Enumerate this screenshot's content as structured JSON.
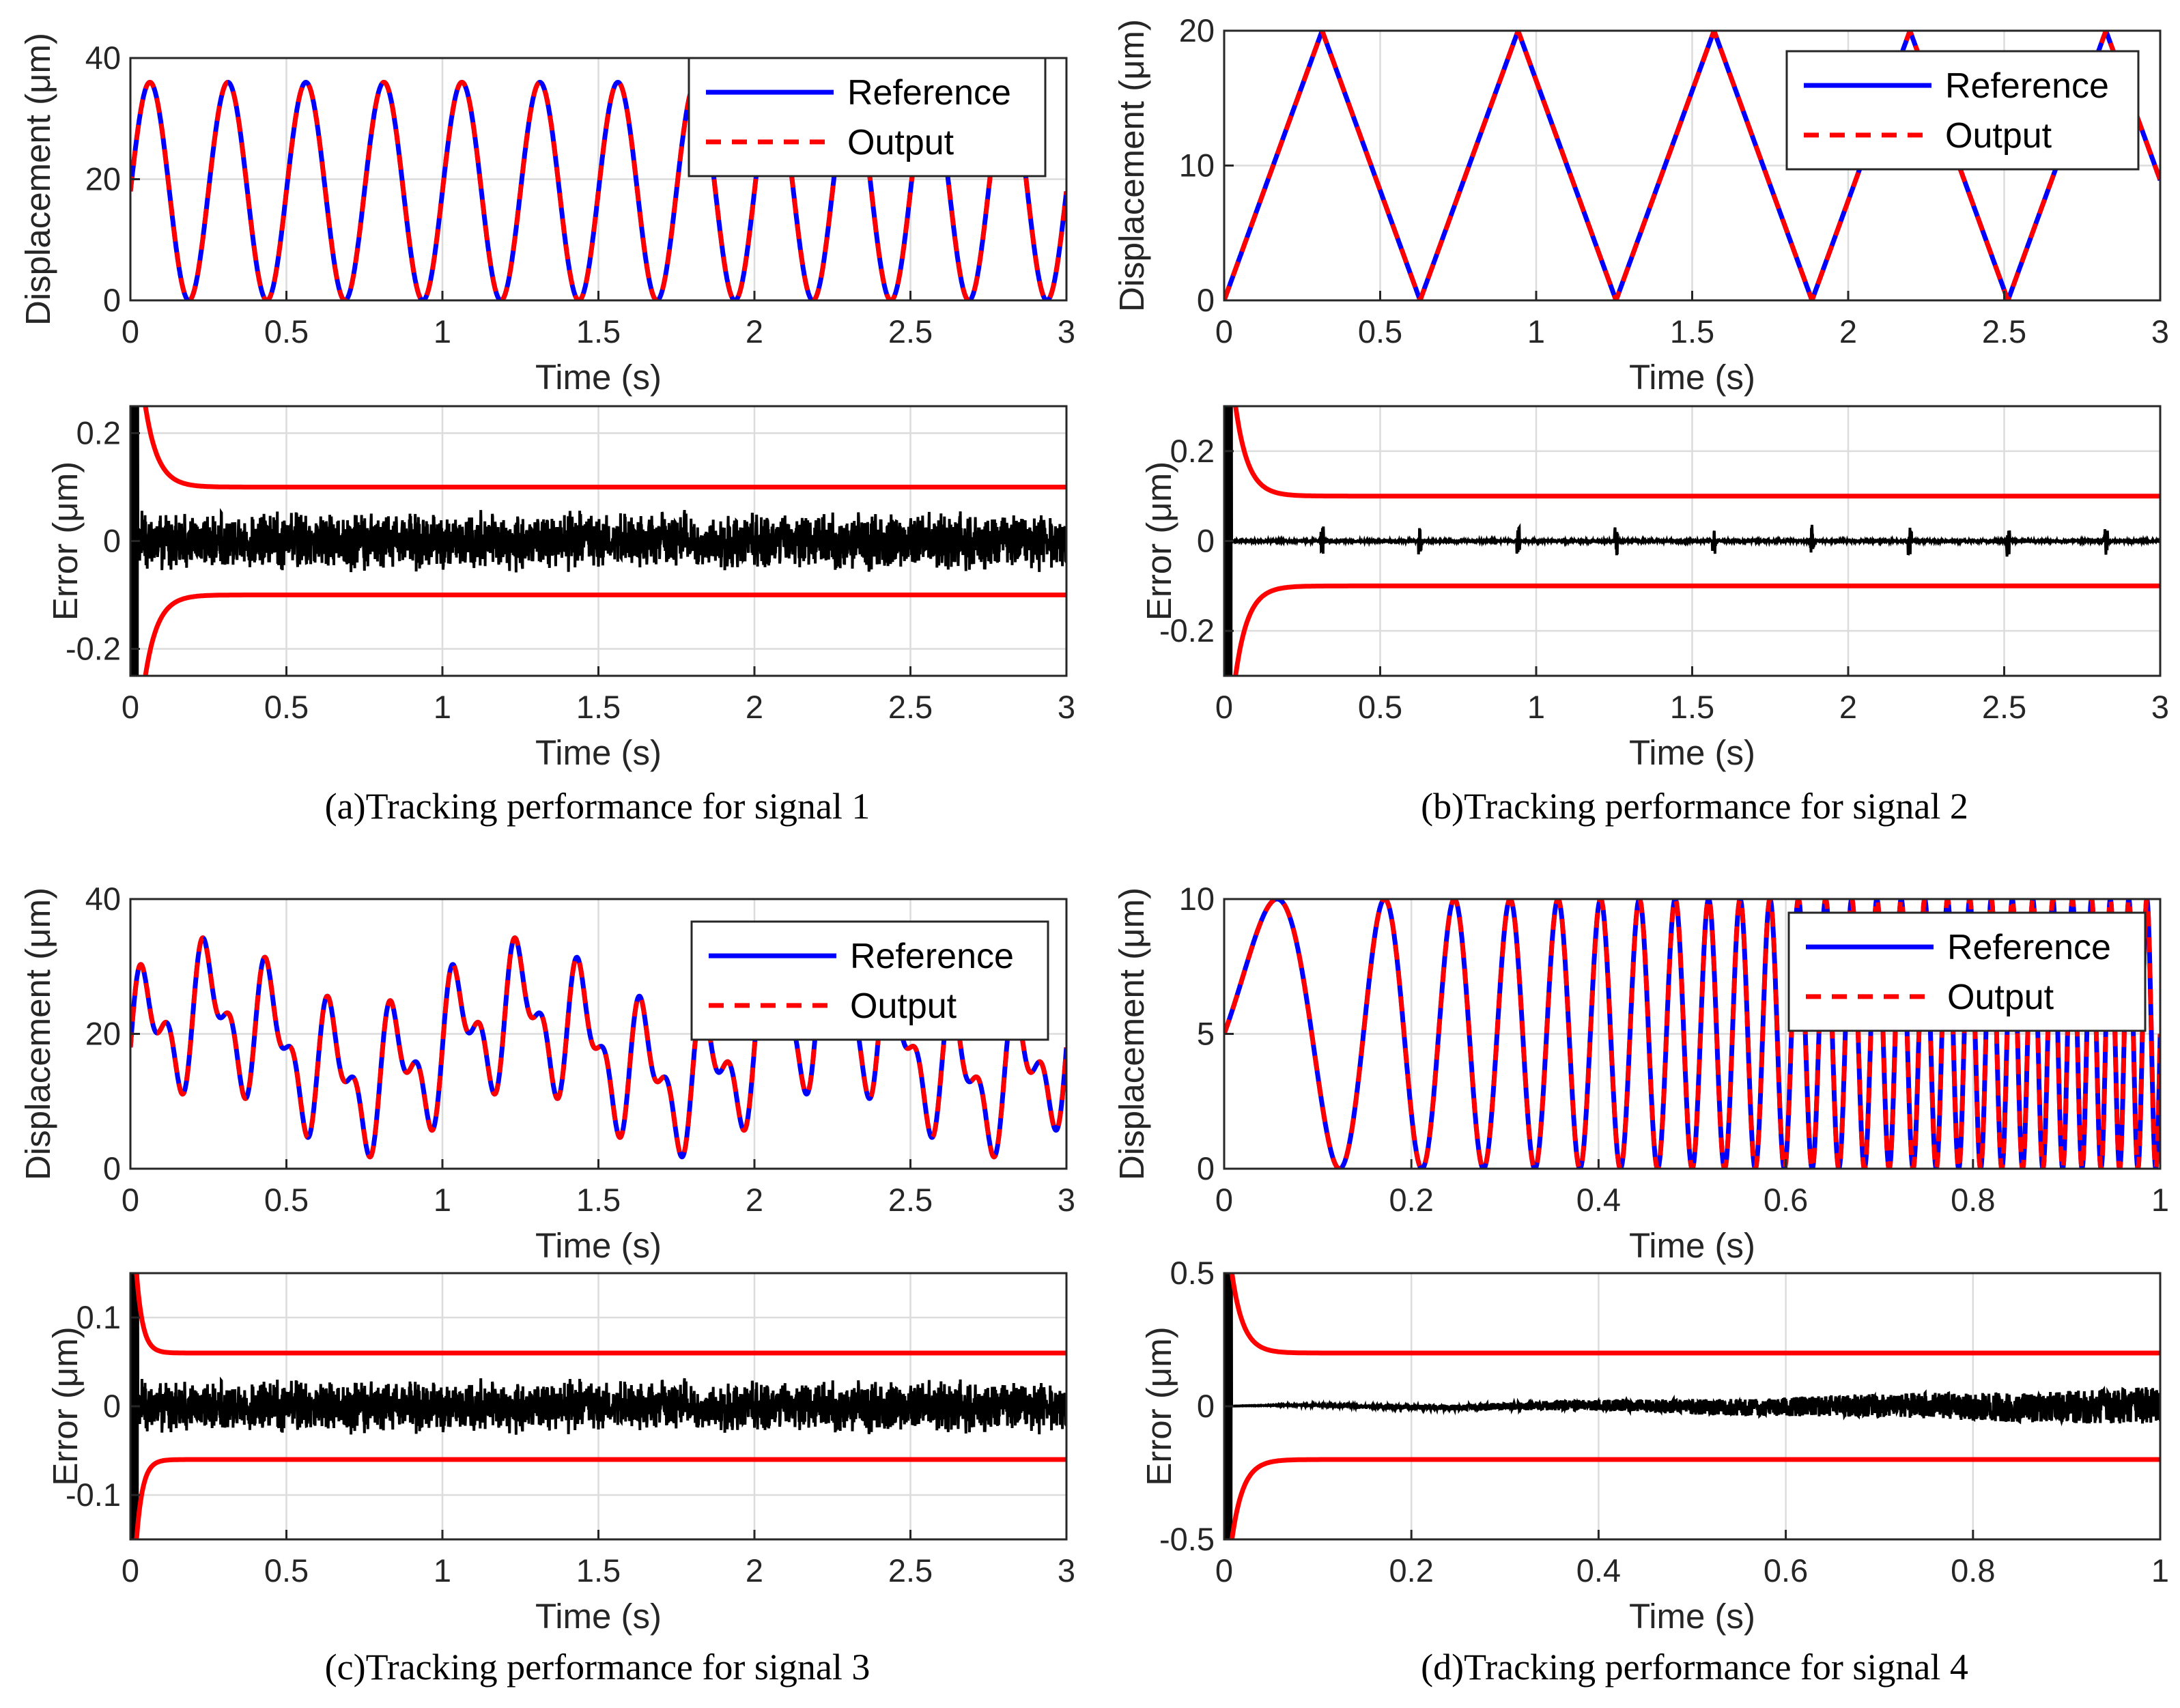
{
  "figure": {
    "captions": [
      "(a)Tracking performance for signal 1",
      "(b)Tracking performance for signal 2",
      "(c)Tracking performance for signal 3",
      "(d)Tracking performance for signal 4"
    ]
  },
  "colors": {
    "reference": "#0000ff",
    "output": "#ff0000",
    "error": "#000000",
    "bound": "#ff0000",
    "grid": "#dcdcdc"
  },
  "chart_data": [
    {
      "id": "a-top",
      "type": "line",
      "title": "",
      "xlabel": "Time (s)",
      "ylabel": "Displacement (μm)",
      "xlim": [
        0,
        3
      ],
      "ylim": [
        0,
        40
      ],
      "xticks": [
        0,
        0.5,
        1,
        1.5,
        2,
        2.5,
        3
      ],
      "xtick_labels": [
        "0",
        "0.5",
        "1",
        "1.5",
        "2",
        "2.5",
        "3"
      ],
      "yticks": [
        0,
        20,
        40
      ],
      "ytick_labels": [
        "0",
        "20",
        "40"
      ],
      "grid": true,
      "legend_position": "top-right",
      "series": [
        {
          "name": "Reference",
          "style": "solid",
          "signal": "sine",
          "amplitude": 18,
          "offset": 18,
          "frequency_hz": 4,
          "phase_start_value": 18
        },
        {
          "name": "Output",
          "style": "dashed",
          "signal": "same-as-reference"
        }
      ]
    },
    {
      "id": "a-bottom",
      "type": "line",
      "title": "",
      "xlabel": "Time (s)",
      "ylabel": "Error (μm)",
      "xlim": [
        0,
        3
      ],
      "ylim": [
        -0.25,
        0.25
      ],
      "xticks": [
        0,
        0.5,
        1,
        1.5,
        2,
        2.5,
        3
      ],
      "xtick_labels": [
        "0",
        "0.5",
        "1",
        "1.5",
        "2",
        "2.5",
        "3"
      ],
      "yticks": [
        -0.2,
        0,
        0.2
      ],
      "ytick_labels": [
        "-0.2",
        "0",
        "0.2"
      ],
      "grid": true,
      "bounds": {
        "initial": 0.6,
        "final": 0.1,
        "decay_time_s": 0.04
      },
      "error_noise_amplitude": 0.04
    },
    {
      "id": "b-top",
      "type": "line",
      "title": "",
      "xlabel": "Time (s)",
      "ylabel": "Displacement (μm)",
      "xlim": [
        0,
        3
      ],
      "ylim": [
        0,
        20
      ],
      "xticks": [
        0,
        0.5,
        1,
        1.5,
        2,
        2.5,
        3
      ],
      "xtick_labels": [
        "0",
        "0.5",
        "1",
        "1.5",
        "2",
        "2.5",
        "3"
      ],
      "yticks": [
        0,
        10,
        20
      ],
      "ytick_labels": [
        "0",
        "10",
        "20"
      ],
      "grid": true,
      "legend_position": "top-right",
      "series": [
        {
          "name": "Reference",
          "style": "solid",
          "signal": "triangle",
          "min": 0,
          "max": 20,
          "period_s": 0.628
        },
        {
          "name": "Output",
          "style": "dashed",
          "signal": "same-as-reference"
        }
      ]
    },
    {
      "id": "b-bottom",
      "type": "line",
      "title": "",
      "xlabel": "Time (s)",
      "ylabel": "Error (μm)",
      "xlim": [
        0,
        3
      ],
      "ylim": [
        -0.3,
        0.3
      ],
      "xticks": [
        0,
        0.5,
        1,
        1.5,
        2,
        2.5,
        3
      ],
      "xtick_labels": [
        "0",
        "0.5",
        "1",
        "1.5",
        "2",
        "2.5",
        "3"
      ],
      "yticks": [
        -0.2,
        0,
        0.2
      ],
      "ytick_labels": [
        "-0.2",
        "0",
        "0.2"
      ],
      "grid": true,
      "bounds": {
        "initial": 0.6,
        "final": 0.1,
        "decay_time_s": 0.04
      },
      "spike_times_s": [
        0.314,
        0.628,
        0.942,
        1.256,
        1.57,
        1.884,
        2.198,
        2.512,
        2.826
      ],
      "spike_amplitude": 0.035
    },
    {
      "id": "c-top",
      "type": "line",
      "title": "",
      "xlabel": "Time (s)",
      "ylabel": "Displacement (μm)",
      "xlim": [
        0,
        3
      ],
      "ylim": [
        0,
        40
      ],
      "xticks": [
        0,
        0.5,
        1,
        1.5,
        2,
        2.5,
        3
      ],
      "xtick_labels": [
        "0",
        "0.5",
        "1",
        "1.5",
        "2",
        "2.5",
        "3"
      ],
      "yticks": [
        0,
        20,
        40
      ],
      "ytick_labels": [
        "0",
        "20",
        "40"
      ],
      "grid": true,
      "legend_position": "top-right",
      "series": [
        {
          "name": "Reference",
          "style": "solid",
          "signal": "multi-sine",
          "offset": 18,
          "components": [
            {
              "amplitude": 8,
              "frequency_hz": 5
            },
            {
              "amplitude": 5,
              "frequency_hz": 10
            },
            {
              "amplitude": 5,
              "frequency_hz": 1
            }
          ]
        },
        {
          "name": "Output",
          "style": "dashed",
          "signal": "same-as-reference"
        }
      ]
    },
    {
      "id": "c-bottom",
      "type": "line",
      "title": "",
      "xlabel": "Time (s)",
      "ylabel": "Error (μm)",
      "xlim": [
        0,
        3
      ],
      "ylim": [
        -0.15,
        0.15
      ],
      "xticks": [
        0,
        0.5,
        1,
        1.5,
        2,
        2.5,
        3
      ],
      "xtick_labels": [
        "0",
        "0.5",
        "1",
        "1.5",
        "2",
        "2.5",
        "3"
      ],
      "yticks": [
        -0.1,
        0,
        0.1
      ],
      "ytick_labels": [
        "-0.1",
        "0",
        "0.1"
      ],
      "grid": true,
      "bounds": {
        "initial": 0.3,
        "final": 0.06,
        "decay_time_s": 0.02
      },
      "error_noise_amplitude": 0.022
    },
    {
      "id": "d-top",
      "type": "line",
      "title": "",
      "xlabel": "Time (s)",
      "ylabel": "Displacement (μm)",
      "xlim": [
        0,
        1
      ],
      "ylim": [
        0,
        10
      ],
      "xticks": [
        0,
        0.2,
        0.4,
        0.6,
        0.8,
        1
      ],
      "xtick_labels": [
        "0",
        "0.2",
        "0.4",
        "0.6",
        "0.8",
        "1"
      ],
      "yticks": [
        0,
        5,
        10
      ],
      "ytick_labels": [
        "0",
        "5",
        "10"
      ],
      "grid": true,
      "legend_position": "top-right",
      "series": [
        {
          "name": "Reference",
          "style": "solid",
          "signal": "chirp",
          "amplitude": 5,
          "offset": 5,
          "start_frequency_hz": 3,
          "chirp_rate": 50
        },
        {
          "name": "Output",
          "style": "dashed",
          "signal": "same-as-reference"
        }
      ]
    },
    {
      "id": "d-bottom",
      "type": "line",
      "title": "",
      "xlabel": "Time (s)",
      "ylabel": "Error (μm)",
      "xlim": [
        0,
        1
      ],
      "ylim": [
        -0.5,
        0.5
      ],
      "xticks": [
        0,
        0.2,
        0.4,
        0.6,
        0.8,
        1
      ],
      "xtick_labels": [
        "0",
        "0.2",
        "0.4",
        "0.6",
        "0.8",
        "1"
      ],
      "yticks": [
        -0.5,
        0,
        0.5
      ],
      "ytick_labels": [
        "-0.5",
        "0",
        "0.5"
      ],
      "grid": true,
      "bounds": {
        "initial": 0.8,
        "final": 0.2,
        "decay_time_s": 0.012
      },
      "error_noise_amplitude_growth": 0.07
    }
  ]
}
